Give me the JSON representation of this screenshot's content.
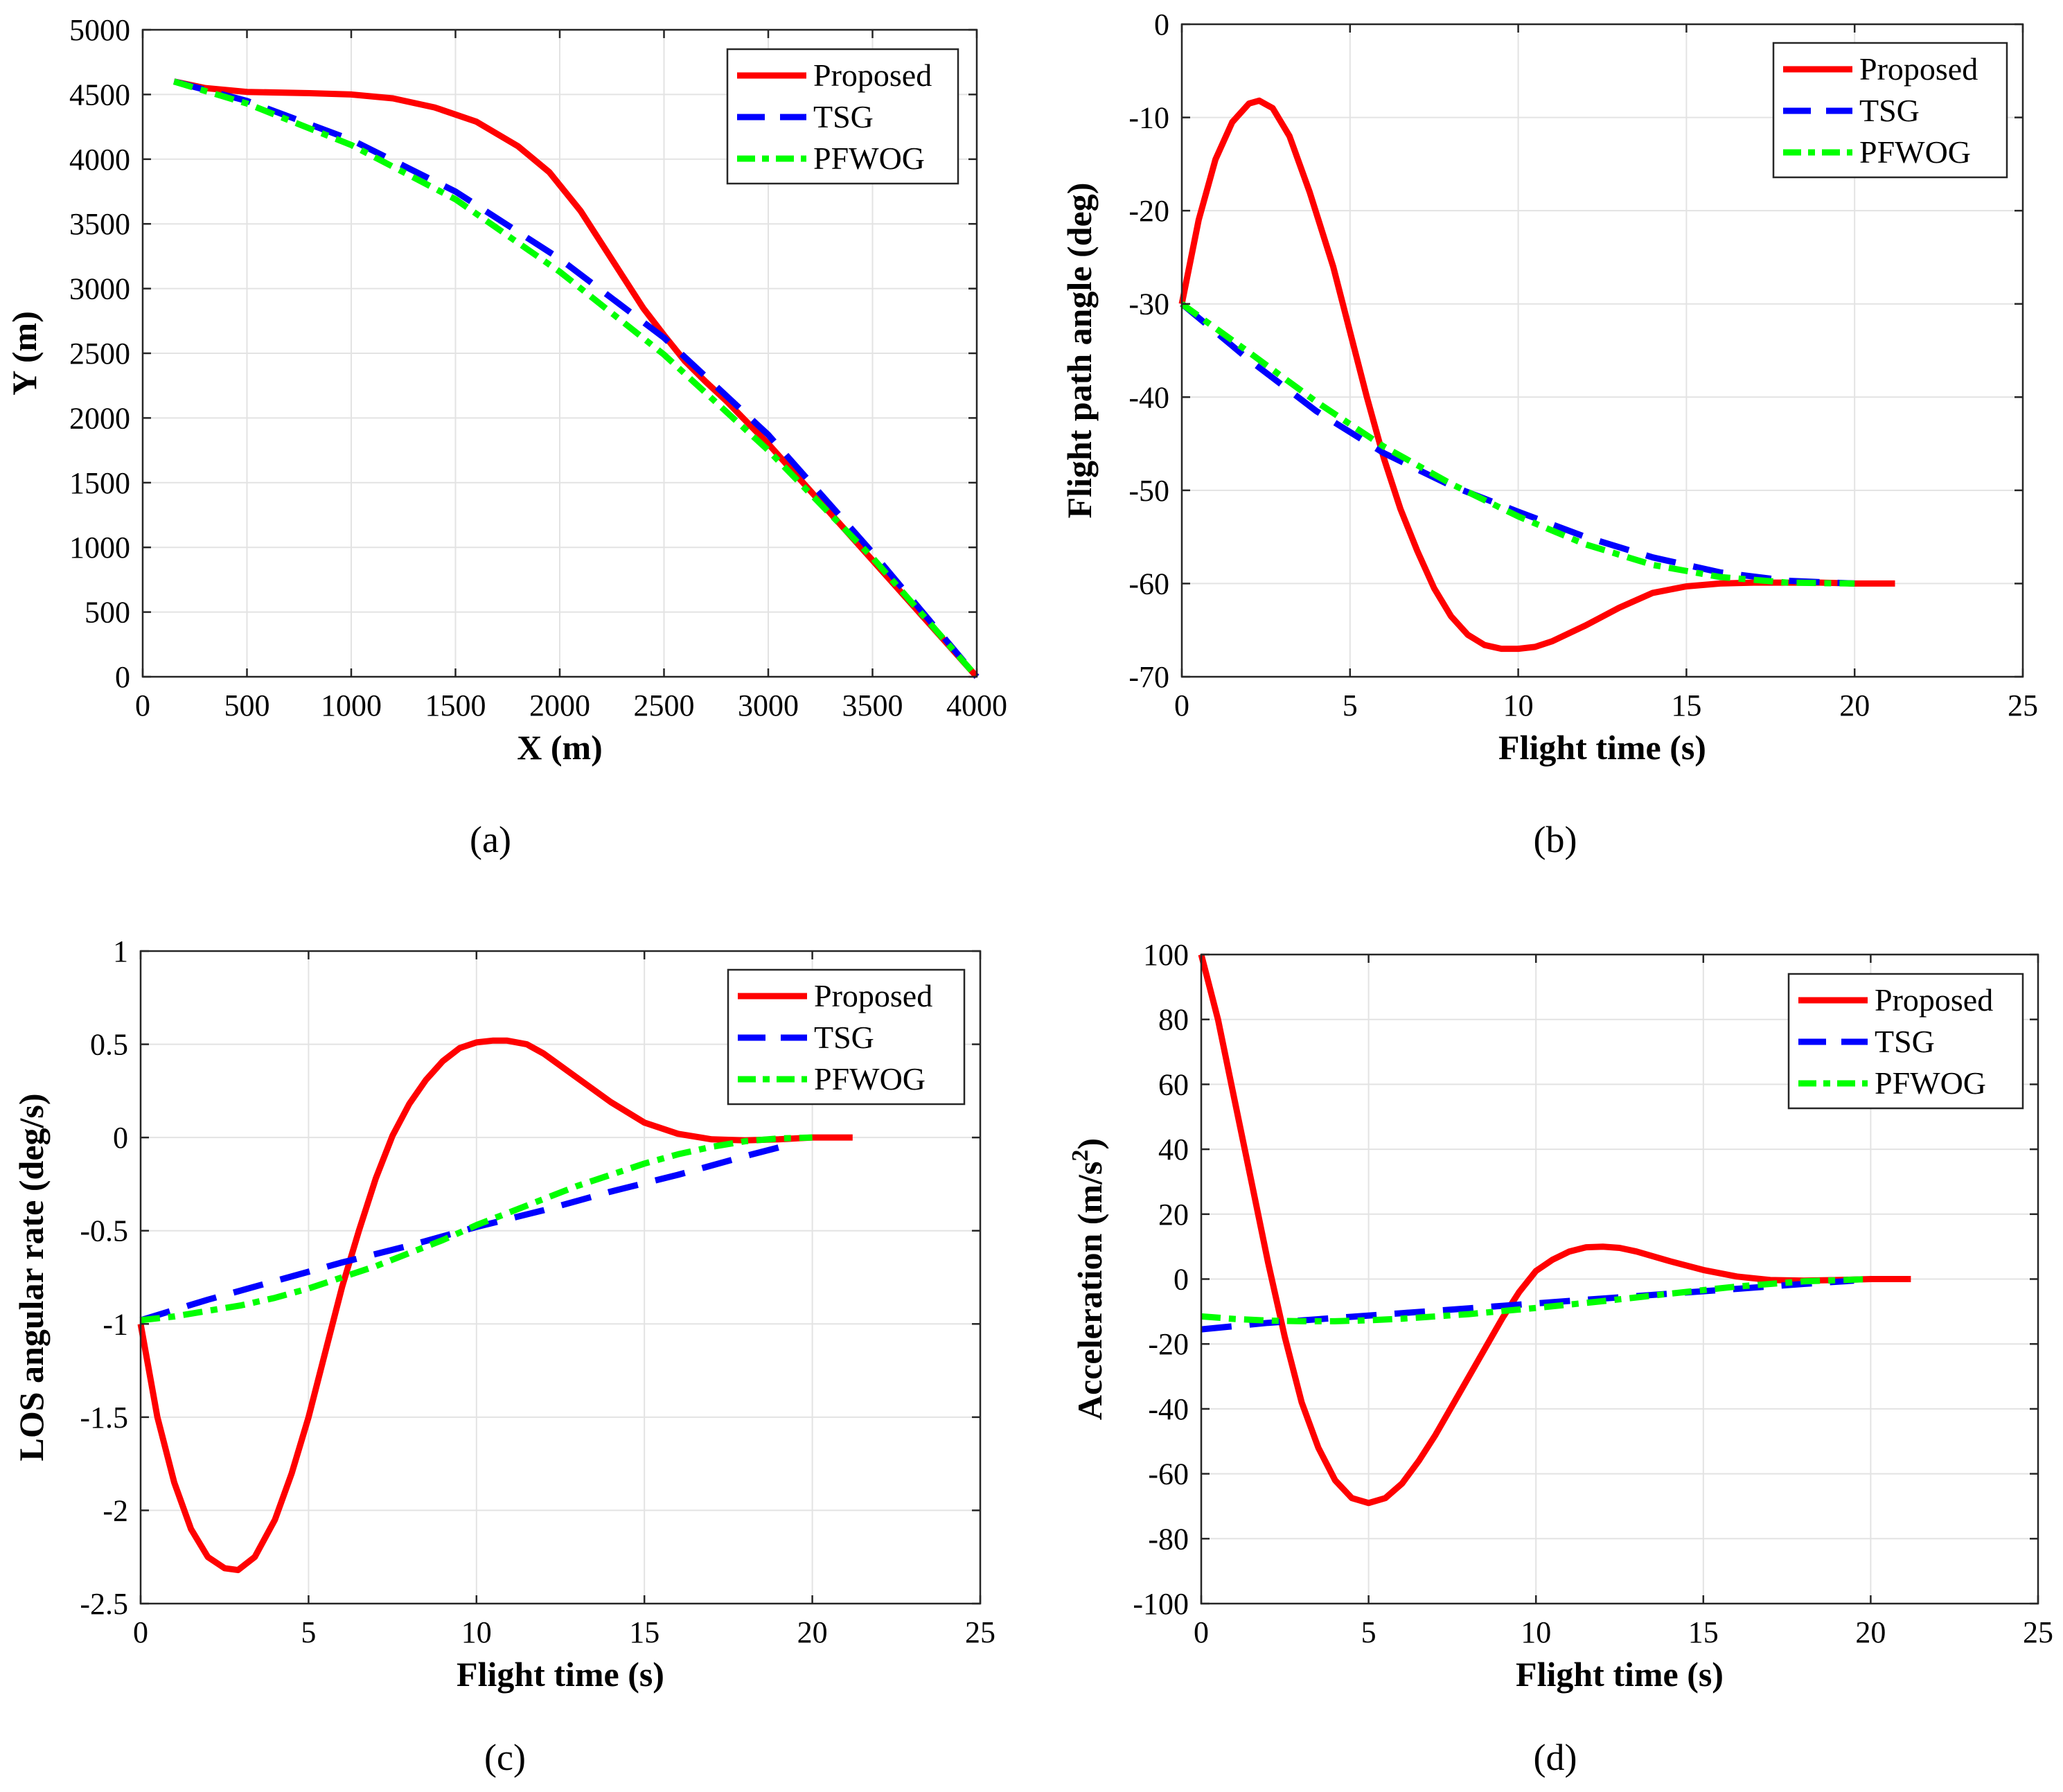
{
  "chart_data": [
    {
      "id": "a",
      "type": "line",
      "panel_label": "(a)",
      "title": "",
      "xlabel": "X (m)",
      "ylabel": "Y (m)",
      "ylabel_sup": "",
      "ylabel_tail": "",
      "xlim": [
        0,
        4000
      ],
      "ylim": [
        0,
        5000
      ],
      "xticks": [
        0,
        500,
        1000,
        1500,
        2000,
        2500,
        3000,
        3500,
        4000
      ],
      "yticks": [
        0,
        500,
        1000,
        1500,
        2000,
        2500,
        3000,
        3500,
        4000,
        4500,
        5000
      ],
      "xtick_labels": [
        "0",
        "500",
        "1000",
        "1500",
        "2000",
        "2500",
        "3000",
        "3500",
        "4000"
      ],
      "ytick_labels": [
        "0",
        "500",
        "1000",
        "1500",
        "2000",
        "2500",
        "3000",
        "3500",
        "4000",
        "4500",
        "5000"
      ],
      "grid": true,
      "legend_position": "top-right",
      "series": [
        {
          "name": "Proposed",
          "color": "#ff0000",
          "dash": "solid",
          "x": [
            150,
            300,
            500,
            800,
            1000,
            1200,
            1400,
            1600,
            1800,
            1950,
            2100,
            2200,
            2300,
            2400,
            2500,
            2600,
            2700,
            2800,
            3000,
            3200,
            3400,
            3600,
            3800,
            4000
          ],
          "y": [
            4600,
            4550,
            4520,
            4510,
            4500,
            4470,
            4400,
            4290,
            4100,
            3900,
            3600,
            3350,
            3100,
            2850,
            2640,
            2440,
            2280,
            2130,
            1800,
            1440,
            1080,
            720,
            360,
            0
          ]
        },
        {
          "name": "TSG",
          "color": "#0000ff",
          "dash": "long",
          "x": [
            150,
            500,
            1000,
            1500,
            2000,
            2500,
            3000,
            3500,
            4000
          ],
          "y": [
            4600,
            4450,
            4150,
            3750,
            3230,
            2620,
            1870,
            960,
            0
          ]
        },
        {
          "name": "PFWOG",
          "color": "#00ff00",
          "dash": "dashdot",
          "x": [
            150,
            500,
            1000,
            1500,
            2000,
            2500,
            3000,
            3500,
            4000
          ],
          "y": [
            4600,
            4430,
            4110,
            3690,
            3130,
            2490,
            1750,
            920,
            0
          ]
        }
      ]
    },
    {
      "id": "b",
      "type": "line",
      "panel_label": "(b)",
      "title": "",
      "xlabel": "Flight time (s)",
      "ylabel": "Flight path angle (deg)",
      "ylabel_sup": "",
      "ylabel_tail": "",
      "xlim": [
        0,
        25
      ],
      "ylim": [
        -70,
        0
      ],
      "xticks": [
        0,
        5,
        10,
        15,
        20,
        25
      ],
      "yticks": [
        -70,
        -60,
        -50,
        -40,
        -30,
        -20,
        -10,
        0
      ],
      "xtick_labels": [
        "0",
        "5",
        "10",
        "15",
        "20",
        "25"
      ],
      "ytick_labels": [
        "-70",
        "-60",
        "-50",
        "-40",
        "-30",
        "-20",
        "-10",
        "0"
      ],
      "grid": true,
      "legend_position": "top-right",
      "series": [
        {
          "name": "Proposed",
          "color": "#ff0000",
          "dash": "solid",
          "x": [
            0,
            0.5,
            1,
            1.5,
            2,
            2.3,
            2.7,
            3.2,
            3.8,
            4.5,
            5,
            5.5,
            6,
            6.5,
            7,
            7.5,
            8,
            8.5,
            9,
            9.5,
            10,
            10.5,
            11,
            12,
            13,
            14,
            15,
            16,
            17,
            18,
            19,
            20,
            21.2
          ],
          "y": [
            -30,
            -21,
            -14.5,
            -10.5,
            -8.5,
            -8.2,
            -9,
            -12,
            -18,
            -26,
            -33,
            -40,
            -46.5,
            -52,
            -56.5,
            -60.5,
            -63.5,
            -65.5,
            -66.6,
            -67,
            -67,
            -66.8,
            -66.2,
            -64.5,
            -62.6,
            -61,
            -60.3,
            -60,
            -59.9,
            -59.9,
            -59.9,
            -60,
            -60
          ]
        },
        {
          "name": "TSG",
          "color": "#0000ff",
          "dash": "long",
          "x": [
            0,
            2,
            4,
            6,
            8,
            10,
            12,
            14,
            16,
            18,
            20
          ],
          "y": [
            -30,
            -36,
            -41.5,
            -46,
            -49.5,
            -52.3,
            -55,
            -57.2,
            -58.8,
            -59.7,
            -60
          ]
        },
        {
          "name": "PFWOG",
          "color": "#00ff00",
          "dash": "dashdot",
          "x": [
            0,
            2,
            4,
            6,
            8,
            10,
            12,
            14,
            16,
            18,
            20
          ],
          "y": [
            -30,
            -35.2,
            -40.5,
            -45.3,
            -49.3,
            -52.8,
            -55.8,
            -58,
            -59.3,
            -59.9,
            -60
          ]
        }
      ]
    },
    {
      "id": "c",
      "type": "line",
      "panel_label": "(c)",
      "title": "",
      "xlabel": "Flight time (s)",
      "ylabel": "LOS angular rate (deg/s)",
      "ylabel_sup": "",
      "ylabel_tail": "",
      "xlim": [
        0,
        25
      ],
      "ylim": [
        -2.5,
        1
      ],
      "xticks": [
        0,
        5,
        10,
        15,
        20,
        25
      ],
      "yticks": [
        -2.5,
        -2,
        -1.5,
        -1,
        -0.5,
        0,
        0.5,
        1
      ],
      "xtick_labels": [
        "0",
        "5",
        "10",
        "15",
        "20",
        "25"
      ],
      "ytick_labels": [
        "-2.5",
        "-2",
        "-1.5",
        "-1",
        "-0.5",
        "0",
        "0.5",
        "1"
      ],
      "grid": true,
      "legend_position": "top-right",
      "series": [
        {
          "name": "Proposed",
          "color": "#ff0000",
          "dash": "solid",
          "x": [
            0,
            0.5,
            1,
            1.5,
            2,
            2.5,
            2.9,
            3.4,
            4,
            4.5,
            5,
            5.5,
            6,
            6.5,
            7,
            7.5,
            8,
            8.5,
            9,
            9.5,
            10,
            10.5,
            10.9,
            11.5,
            12,
            13,
            14,
            15,
            16,
            17,
            18,
            19,
            20,
            21.2
          ],
          "y": [
            -1,
            -1.5,
            -1.85,
            -2.1,
            -2.25,
            -2.31,
            -2.32,
            -2.25,
            -2.05,
            -1.8,
            -1.5,
            -1.15,
            -0.8,
            -0.5,
            -0.22,
            0.01,
            0.18,
            0.31,
            0.41,
            0.48,
            0.51,
            0.52,
            0.52,
            0.5,
            0.45,
            0.32,
            0.19,
            0.08,
            0.02,
            -0.01,
            -0.015,
            -0.01,
            0,
            0
          ]
        },
        {
          "name": "TSG",
          "color": "#0000ff",
          "dash": "long",
          "x": [
            0,
            2,
            4,
            6,
            8,
            10,
            12,
            14,
            16,
            18,
            19.5
          ],
          "y": [
            -0.98,
            -0.87,
            -0.77,
            -0.67,
            -0.58,
            -0.48,
            -0.39,
            -0.29,
            -0.2,
            -0.1,
            -0.03
          ]
        },
        {
          "name": "PFWOG",
          "color": "#00ff00",
          "dash": "dashdot",
          "x": [
            0,
            1,
            2,
            3,
            4,
            5,
            6,
            7,
            8,
            9,
            10,
            11,
            12,
            13,
            14,
            15,
            16,
            17,
            18,
            19,
            20
          ],
          "y": [
            -0.98,
            -0.96,
            -0.93,
            -0.9,
            -0.86,
            -0.81,
            -0.75,
            -0.69,
            -0.62,
            -0.55,
            -0.47,
            -0.4,
            -0.33,
            -0.26,
            -0.2,
            -0.14,
            -0.09,
            -0.05,
            -0.02,
            -0.005,
            0
          ]
        }
      ]
    },
    {
      "id": "d",
      "type": "line",
      "panel_label": "(d)",
      "title": "",
      "xlabel": "Flight time (s)",
      "ylabel": "Acceleration (m/s",
      "ylabel_sup": "2",
      "ylabel_tail": ")",
      "xlim": [
        0,
        25
      ],
      "ylim": [
        -100,
        100
      ],
      "xticks": [
        0,
        5,
        10,
        15,
        20,
        25
      ],
      "yticks": [
        -100,
        -80,
        -60,
        -40,
        -20,
        0,
        20,
        40,
        60,
        80,
        100
      ],
      "xtick_labels": [
        "0",
        "5",
        "10",
        "15",
        "20",
        "25"
      ],
      "ytick_labels": [
        "-100",
        "-80",
        "-60",
        "-40",
        "-20",
        "0",
        "20",
        "40",
        "60",
        "80",
        "100"
      ],
      "grid": true,
      "legend_position": "top-right",
      "series": [
        {
          "name": "Proposed",
          "color": "#ff0000",
          "dash": "solid",
          "x": [
            0,
            0.5,
            1,
            1.5,
            2,
            2.5,
            3,
            3.5,
            4,
            4.5,
            5,
            5.5,
            6,
            6.5,
            7,
            7.5,
            8,
            8.5,
            9,
            9.5,
            10,
            10.5,
            11,
            11.5,
            12,
            12.5,
            13,
            14,
            15,
            16,
            17,
            18,
            19,
            20,
            21.2
          ],
          "y": [
            100,
            80,
            55,
            30,
            5,
            -18,
            -38,
            -52,
            -62,
            -67.5,
            -69,
            -67.5,
            -63,
            -56,
            -48,
            -39,
            -30,
            -21,
            -12,
            -4,
            2.5,
            6,
            8.5,
            9.8,
            10,
            9.6,
            8.5,
            5.5,
            2.8,
            0.8,
            -0.3,
            -0.5,
            -0.3,
            0,
            0
          ]
        },
        {
          "name": "TSG",
          "color": "#0000ff",
          "dash": "long",
          "x": [
            0,
            2,
            4,
            6,
            8,
            10,
            12,
            14,
            16,
            18,
            19.5
          ],
          "y": [
            -15.5,
            -13.5,
            -12,
            -10.5,
            -9,
            -7.5,
            -6,
            -4.5,
            -3,
            -1.5,
            -0.5
          ]
        },
        {
          "name": "PFWOG",
          "color": "#00ff00",
          "dash": "dashdot",
          "x": [
            0,
            1,
            2,
            3,
            4,
            5,
            6,
            8,
            10,
            12,
            14,
            16,
            18,
            20
          ],
          "y": [
            -11.5,
            -12.3,
            -12.8,
            -13,
            -13,
            -12.7,
            -12.2,
            -10.8,
            -8.9,
            -6.8,
            -4.5,
            -2.3,
            -0.7,
            0
          ]
        }
      ]
    }
  ]
}
